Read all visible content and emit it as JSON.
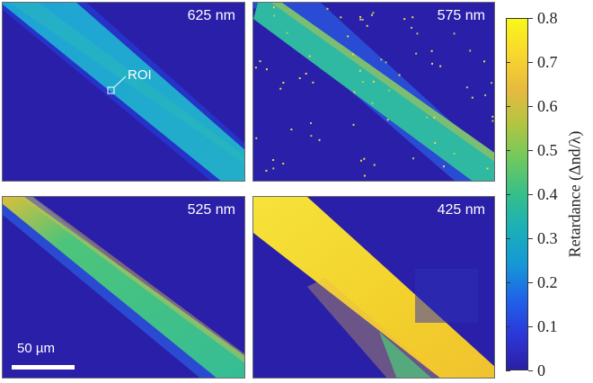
{
  "panels": [
    {
      "wavelength_label": "625 nm"
    },
    {
      "wavelength_label": "575 nm"
    },
    {
      "wavelength_label": "525 nm"
    },
    {
      "wavelength_label": "425 nm"
    }
  ],
  "roi_label": "ROI",
  "scalebar_label": "50 µm",
  "colorbar": {
    "title": "Retardance (Δnd/λ)",
    "ticks": [
      "0",
      "0.1",
      "0.2",
      "0.3",
      "0.4",
      "0.5",
      "0.6",
      "0.7",
      "0.8"
    ],
    "range": [
      0,
      0.8
    ],
    "colormap": "parula"
  },
  "colors": {
    "background": "#2a1fa8",
    "band_625": "#1ea3d6",
    "band_575": "#28bc9b",
    "band_525": "#3ec38a",
    "band_425": "#f4d92a"
  }
}
